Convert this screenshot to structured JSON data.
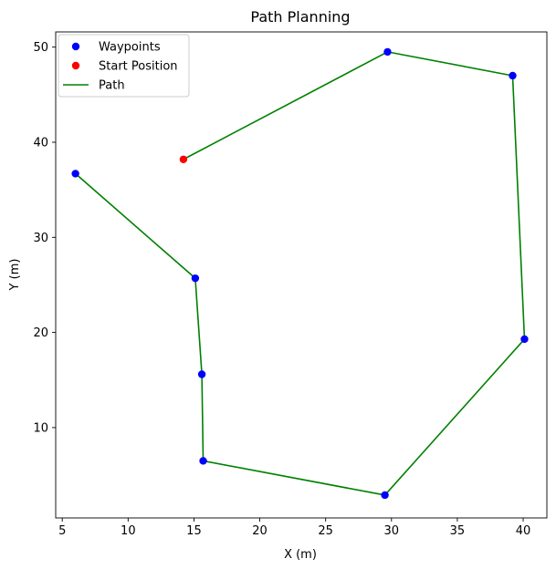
{
  "chart_data": {
    "type": "scatter",
    "title": "Path Planning",
    "xlabel": "X (m)",
    "ylabel": "Y (m)",
    "xlim": [
      4.5,
      41.8
    ],
    "ylim": [
      0.5,
      51.6
    ],
    "xticks": [
      5,
      10,
      15,
      20,
      25,
      30,
      35,
      40
    ],
    "yticks": [
      10,
      20,
      30,
      40,
      50
    ],
    "grid": false,
    "legend_position": "top-left",
    "series": [
      {
        "name": "Waypoints",
        "kind": "scatter",
        "color": "#0000ff",
        "points": [
          [
            6.0,
            36.7
          ],
          [
            15.1,
            25.7
          ],
          [
            15.6,
            15.6
          ],
          [
            15.7,
            6.5
          ],
          [
            29.5,
            2.9
          ],
          [
            40.1,
            19.3
          ],
          [
            39.2,
            47.0
          ],
          [
            29.7,
            49.5
          ]
        ]
      },
      {
        "name": "Start Position",
        "kind": "scatter",
        "color": "#ff0000",
        "points": [
          [
            14.2,
            38.2
          ]
        ]
      },
      {
        "name": "Path",
        "kind": "line",
        "color": "#008000",
        "points": [
          [
            6.0,
            36.7
          ],
          [
            15.1,
            25.7
          ],
          [
            15.6,
            15.6
          ],
          [
            15.7,
            6.5
          ],
          [
            29.5,
            2.9
          ],
          [
            40.1,
            19.3
          ],
          [
            39.2,
            47.0
          ],
          [
            29.7,
            49.5
          ],
          [
            14.2,
            38.2
          ]
        ]
      }
    ]
  }
}
